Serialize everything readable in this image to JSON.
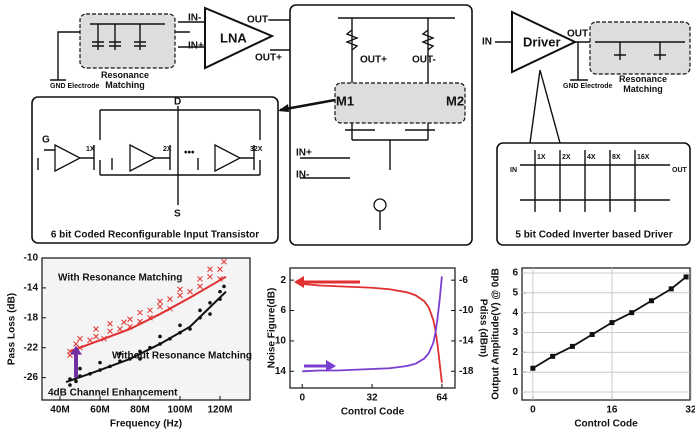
{
  "diagram": {
    "lna": {
      "in_minus": "IN-",
      "in_plus": "IN+",
      "label": "LNA",
      "out_minus": "OUT-",
      "out_plus": "OUT+",
      "gnd": "GND Electrode",
      "matching": "Resonance Matching"
    },
    "input_transistor": {
      "d": "D",
      "g": "G",
      "s": "S",
      "sizes": [
        "1X",
        "2X",
        "32X"
      ],
      "caption": "6 bit Coded Reconfigurable Input Transistor"
    },
    "core": {
      "out_plus": "OUT+",
      "out_minus": "OUT-",
      "m1": "M1",
      "m2": "M2",
      "in_plus": "IN+",
      "in_minus": "IN-"
    },
    "driver": {
      "in": "IN",
      "label": "Driver",
      "out": "OUT",
      "gnd": "GND Electrode",
      "matching": "Resonance Matching",
      "sizes": [
        "1X",
        "2X",
        "4X",
        "8X",
        "16X"
      ],
      "in2": "IN",
      "out2": "OUT",
      "caption": "5 bit Coded  Inverter based Driver"
    }
  },
  "chart_data": [
    {
      "type": "scatter",
      "xlabel": "Frequency (Hz)",
      "ylabel": "Pass Loss (dB)",
      "xlim": [
        31000000,
        135000000
      ],
      "xticks": [
        {
          "value": 40000000,
          "label": "40M"
        },
        {
          "value": 60000000,
          "label": "60M"
        },
        {
          "value": 80000000,
          "label": "80M"
        },
        {
          "value": 100000000,
          "label": "100M"
        },
        {
          "value": 120000000,
          "label": "120M"
        }
      ],
      "ylim": [
        -29,
        -10
      ],
      "yticks": [
        -10,
        -14,
        -18,
        -22,
        -26
      ],
      "series": [
        {
          "name": "With Resonance Matching",
          "color": "#e03030",
          "marker": "x",
          "x": [
            45000000,
            45000000,
            48000000,
            50000000,
            50000000,
            55000000,
            58000000,
            58000000,
            62000000,
            65000000,
            65000000,
            70000000,
            72000000,
            75000000,
            75000000,
            80000000,
            80000000,
            85000000,
            85000000,
            90000000,
            90000000,
            95000000,
            95000000,
            100000000,
            100000000,
            105000000,
            110000000,
            110000000,
            115000000,
            115000000,
            120000000,
            120000000,
            122000000
          ],
          "values": [
            -23,
            -22.5,
            -21.5,
            -22,
            -20.8,
            -21,
            -20.5,
            -19.5,
            -20.8,
            -19.8,
            -18.8,
            -19.5,
            -18.6,
            -18.2,
            -19.2,
            -18.5,
            -17.3,
            -17,
            -18,
            -16.5,
            -15.8,
            -15.5,
            -16.8,
            -15,
            -14.2,
            -14.5,
            -13.8,
            -12.8,
            -12.5,
            -11.5,
            -11.5,
            -12.8,
            -10.5
          ],
          "fit_x": [
            45000000,
            60000000,
            75000000,
            90000000,
            105000000,
            123000000
          ],
          "fit_values": [
            -22.5,
            -21,
            -19.5,
            -17.5,
            -15.3,
            -12.5
          ]
        },
        {
          "name": "Without Resonance Matching",
          "color": "#111111",
          "marker": "dot",
          "x": [
            45000000,
            45000000,
            48000000,
            50000000,
            50000000,
            55000000,
            60000000,
            60000000,
            65000000,
            70000000,
            70000000,
            75000000,
            80000000,
            80000000,
            85000000,
            90000000,
            90000000,
            95000000,
            100000000,
            100000000,
            105000000,
            110000000,
            110000000,
            115000000,
            115000000,
            120000000,
            120000000,
            122000000
          ],
          "values": [
            -27,
            -26.2,
            -26.5,
            -25.8,
            -24.8,
            -25.5,
            -25,
            -24,
            -24.5,
            -23.8,
            -22.8,
            -23.5,
            -22.5,
            -23.5,
            -22,
            -21.5,
            -20.5,
            -20.8,
            -20,
            -19,
            -19.5,
            -18,
            -17,
            -17.5,
            -16,
            -15.5,
            -14.5,
            -13.8
          ],
          "fit_x": [
            43000000,
            60000000,
            75000000,
            90000000,
            105000000,
            123000000
          ],
          "fit_values": [
            -26.6,
            -25,
            -23.5,
            -21.5,
            -19.2,
            -14.5
          ]
        }
      ],
      "annotation": {
        "text": "4dB Channel Enhancement",
        "color": "#7030a0",
        "x": 48000000,
        "from": -26,
        "to": -22
      },
      "grid": false
    },
    {
      "type": "line",
      "xlabel": "Control Code",
      "ylabel": "Noise Figure(dB)",
      "y2label": "Pdiss (dBm)",
      "xlim": [
        -5.6,
        70
      ],
      "xticks": [
        0,
        32,
        64
      ],
      "ylim": [
        16.2,
        0.4
      ],
      "yticks": [
        2,
        6,
        10,
        14
      ],
      "y2lim": [
        -20.2,
        -4.4
      ],
      "y2ticks": [
        -6,
        -10,
        -14,
        -18
      ],
      "x": [
        0,
        8,
        16,
        24,
        32,
        40,
        48,
        52,
        56,
        58,
        60,
        61,
        62,
        63,
        64
      ],
      "series": [
        {
          "color": "#e03030",
          "values": [
            2.5,
            2.7,
            2.8,
            2.9,
            3.0,
            3.2,
            3.6,
            4.0,
            4.8,
            5.6,
            7.2,
            8.5,
            10.5,
            13,
            15.5
          ]
        },
        {
          "color": "#7b3fd0",
          "axis": "y2",
          "values": [
            -18,
            -17.9,
            -17.9,
            -17.8,
            -17.7,
            -17.6,
            -17.3,
            -17,
            -16.3,
            -15.6,
            -14.3,
            -13,
            -11,
            -8.5,
            -5.5
          ]
        }
      ],
      "grid": false
    },
    {
      "type": "line",
      "xlabel": "Control Code",
      "ylabel": "Output Amplitude(V) @ 0dB",
      "xlim": [
        -2.2,
        31.8
      ],
      "xticks": [
        0,
        16,
        32
      ],
      "ylim": [
        -0.4,
        6.25
      ],
      "yticks": [
        0,
        1,
        2,
        3,
        4,
        5,
        6
      ],
      "x": [
        0,
        4,
        8,
        12,
        16,
        20,
        24,
        28,
        31
      ],
      "series": [
        {
          "color": "#111111",
          "marker": "square",
          "values": [
            1.2,
            1.8,
            2.3,
            2.9,
            3.5,
            4.0,
            4.6,
            5.2,
            5.8
          ]
        }
      ],
      "grid": true
    }
  ]
}
